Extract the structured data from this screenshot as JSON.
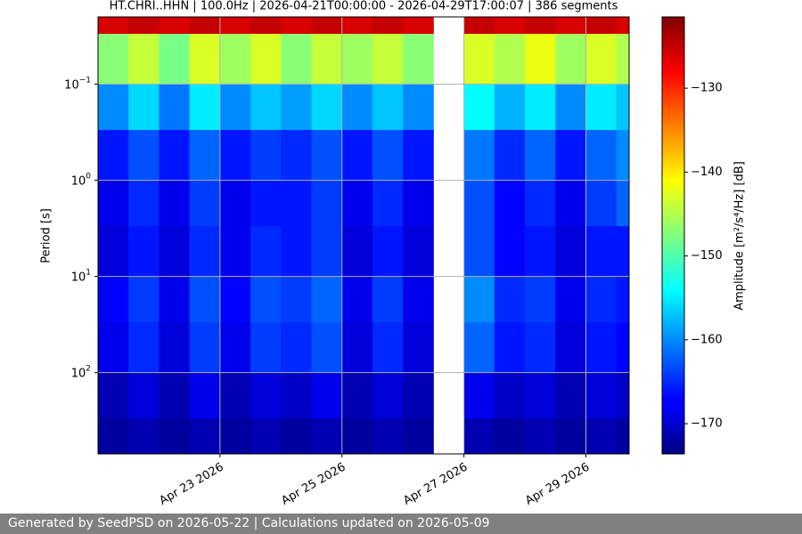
{
  "chart_data": {
    "type": "heatmap",
    "title": "HT.CHRI..HHN | 100.0Hz | 2026-04-21T00:00:00 - 2026-04-29T17:00:07 | 386 segments",
    "y_label": "Period [s]",
    "colorbar_label": "Amplitude [m²/s⁴/Hz] [dB]",
    "footer": "Generated by SeedPSD on 2026-05-22 | Calculations updated on 2026-05-09",
    "x": [
      "2026-04-21T00:00",
      "2026-04-21T12:00",
      "2026-04-22T00:00",
      "2026-04-22T12:00",
      "2026-04-23T00:00",
      "2026-04-23T12:00",
      "2026-04-24T00:00",
      "2026-04-24T12:00",
      "2026-04-25T00:00",
      "2026-04-25T12:00",
      "2026-04-26T00:00",
      "2026-04-26T12:00",
      "2026-04-27T00:00",
      "2026-04-27T12:00",
      "2026-04-28T00:00",
      "2026-04-28T12:00",
      "2026-04-29T00:00",
      "2026-04-29T12:00",
      "2026-04-29T17:00"
    ],
    "y": [
      0.02,
      0.03,
      0.1,
      0.3,
      1,
      3,
      10,
      30,
      100,
      300,
      700
    ],
    "z": [
      [
        -126,
        -125,
        -126,
        -125,
        -126,
        -125,
        -126,
        -125,
        -126,
        -125,
        -126,
        null,
        -125,
        -126,
        -125,
        -126,
        -125,
        -126
      ],
      [
        -147,
        -144,
        -148,
        -143,
        -146,
        -143,
        -147,
        -144,
        -146,
        -144,
        -147,
        null,
        -143,
        -145,
        -142,
        -146,
        -143,
        -145
      ],
      [
        -160,
        -156,
        -161,
        -155,
        -160,
        -157,
        -159,
        -156,
        -160,
        -157,
        -160,
        null,
        -154,
        -158,
        -155,
        -160,
        -155,
        -157
      ],
      [
        -166,
        -163,
        -166,
        -162,
        -166,
        -164,
        -165,
        -163,
        -166,
        -163,
        -166,
        null,
        -161,
        -165,
        -162,
        -166,
        -162,
        -160
      ],
      [
        -168,
        -165,
        -168,
        -164,
        -168,
        -166,
        -166,
        -164,
        -168,
        -165,
        -168,
        null,
        -163,
        -167,
        -165,
        -168,
        -164,
        -162
      ],
      [
        -169,
        -166,
        -169,
        -165,
        -168,
        -165,
        -166,
        -164,
        -169,
        -166,
        -169,
        null,
        -163,
        -167,
        -166,
        -169,
        -166,
        -166
      ],
      [
        -167,
        -164,
        -168,
        -163,
        -167,
        -163,
        -164,
        -162,
        -168,
        -164,
        -168,
        null,
        -160,
        -165,
        -164,
        -168,
        -165,
        -166
      ],
      [
        -168,
        -165,
        -169,
        -164,
        -168,
        -164,
        -165,
        -163,
        -169,
        -165,
        -169,
        null,
        -162,
        -166,
        -165,
        -169,
        -166,
        -167
      ],
      [
        -171,
        -169,
        -171,
        -168,
        -171,
        -169,
        -170,
        -168,
        -171,
        -169,
        -171,
        null,
        -168,
        -170,
        -169,
        -171,
        -169,
        -170
      ],
      [
        -172,
        -171,
        -172,
        -171,
        -172,
        -171,
        -172,
        -171,
        -172,
        -171,
        -172,
        null,
        -171,
        -172,
        -171,
        -172,
        -171,
        -172
      ]
    ],
    "xlim": [
      "2026-04-21T00:00",
      "2026-04-29T17:00"
    ],
    "xticks": [
      {
        "value": "2026-04-23T00:00",
        "label": "Apr 23 2026"
      },
      {
        "value": "2026-04-25T00:00",
        "label": "Apr 25 2026"
      },
      {
        "value": "2026-04-27T00:00",
        "label": "Apr 27 2026"
      },
      {
        "value": "2026-04-29T00:00",
        "label": "Apr 29 2026"
      }
    ],
    "ylim": [
      0.02,
      700
    ],
    "y_log": true,
    "y_inverted": true,
    "yticks": [
      {
        "value": 0.1,
        "label": "10",
        "exponent": "−1"
      },
      {
        "value": 1,
        "label": "10",
        "exponent": "0"
      },
      {
        "value": 10,
        "label": "10",
        "exponent": "1"
      },
      {
        "value": 100,
        "label": "10",
        "exponent": "2"
      }
    ],
    "grid": true,
    "colormap": "jet",
    "clim": [
      -173.6,
      -121.5
    ],
    "cticks": [
      {
        "value": -130,
        "label": "−130"
      },
      {
        "value": -140,
        "label": "−140"
      },
      {
        "value": -150,
        "label": "−150"
      },
      {
        "value": -160,
        "label": "−160"
      },
      {
        "value": -170,
        "label": "−170"
      }
    ]
  }
}
